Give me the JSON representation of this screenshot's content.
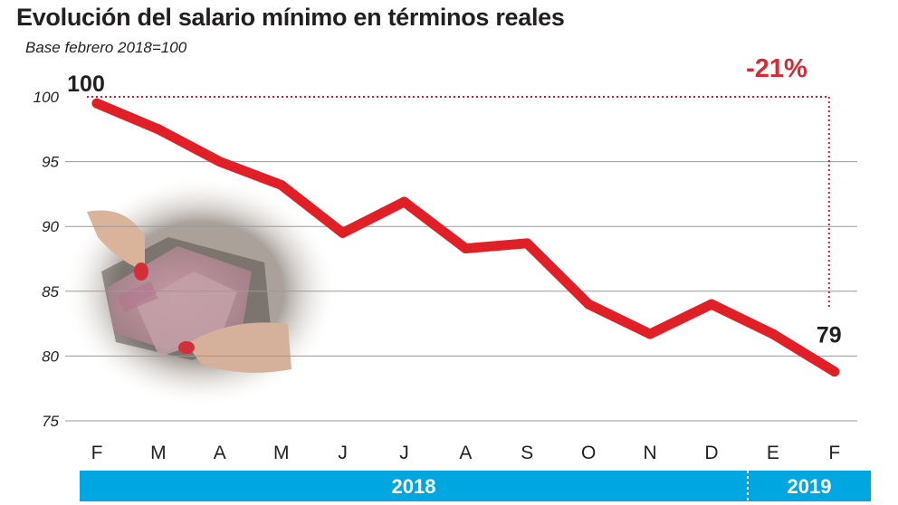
{
  "chart_data": {
    "type": "line",
    "title": "Evolución del salario mínimo en términos reales",
    "subtitle": "Base febrero 2018=100",
    "categories": [
      "F",
      "M",
      "A",
      "M",
      "J",
      "J",
      "A",
      "S",
      "O",
      "N",
      "D",
      "E",
      "F"
    ],
    "series": [
      {
        "values": [
          99.5,
          97.5,
          95,
          93.2,
          89.5,
          91.9,
          88.3,
          88.7,
          84,
          81.7,
          84,
          81.7,
          78.8
        ]
      }
    ],
    "ylim": [
      75,
      100
    ],
    "yticks": [
      100,
      95,
      90,
      85,
      80,
      75
    ],
    "grid": true,
    "reference_value": 100,
    "start_label": "100",
    "end_label": "79",
    "change_label": "-21%",
    "year_bands": [
      {
        "label": "2018",
        "from_index": 0,
        "to_index": 10
      },
      {
        "label": "2019",
        "from_index": 11,
        "to_index": 12
      }
    ],
    "colors": {
      "line": "#e01f26",
      "reference": "#c8202e",
      "change_text": "#d62a36",
      "year_band": "#00a6df",
      "grid": "#9a9a9a"
    }
  }
}
